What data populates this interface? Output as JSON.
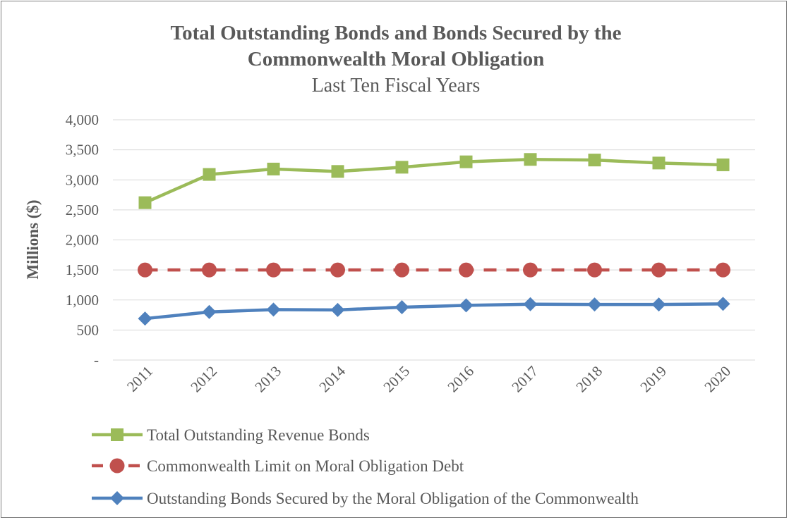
{
  "chart_data": {
    "type": "line",
    "title_line1": "Total Outstanding Bonds and Bonds Secured by the",
    "title_line2": "Commonwealth Moral Obligation",
    "subtitle": "Last Ten Fiscal Years",
    "ylabel": "Millions ($)",
    "xlabel": "",
    "ylim": [
      0,
      4000
    ],
    "yticks": [
      0,
      500,
      1000,
      1500,
      2000,
      2500,
      3000,
      3500,
      4000
    ],
    "ytick_labels": [
      "-",
      "500",
      "1,000",
      "1,500",
      "2,000",
      "2,500",
      "3,000",
      "3,500",
      "4,000"
    ],
    "grid": true,
    "legend_position": "bottom",
    "categories": [
      "2011",
      "2012",
      "2013",
      "2014",
      "2015",
      "2016",
      "2017",
      "2018",
      "2019",
      "2020"
    ],
    "series": [
      {
        "name": "Total Outstanding Revenue Bonds",
        "color": "#9bbb59",
        "marker": "square",
        "line_style": "solid",
        "values": [
          2620,
          3090,
          3180,
          3140,
          3210,
          3300,
          3340,
          3330,
          3280,
          3250
        ]
      },
      {
        "name": "Commonwealth Limit on Moral Obligation Debt",
        "color": "#c0504d",
        "marker": "circle",
        "line_style": "dashed",
        "values": [
          1500,
          1500,
          1500,
          1500,
          1500,
          1500,
          1500,
          1500,
          1500,
          1500
        ]
      },
      {
        "name": "Outstanding Bonds Secured by the Moral Obligation of the Commonwealth",
        "color": "#4f81bd",
        "marker": "diamond",
        "line_style": "solid",
        "values": [
          690,
          800,
          840,
          835,
          880,
          910,
          930,
          925,
          925,
          935
        ]
      }
    ]
  }
}
